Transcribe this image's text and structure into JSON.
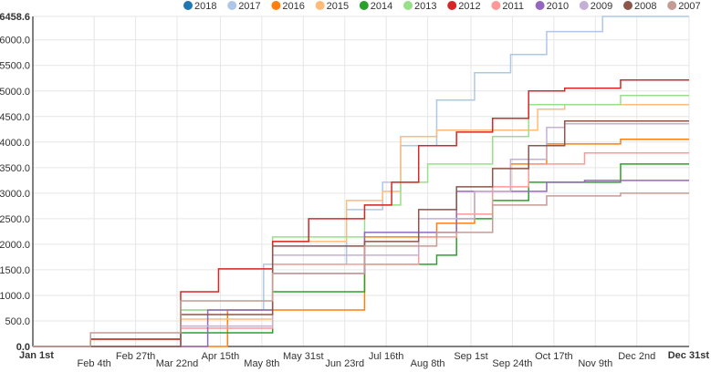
{
  "chart_data": {
    "type": "line",
    "interpolation": "step-after",
    "title": "",
    "xlabel": "",
    "ylabel": "",
    "xlim": [
      "01-01",
      "12-31"
    ],
    "ylim": [
      0,
      6458.6
    ],
    "y_ticks": [
      "0.0",
      "500.0",
      "1000.0",
      "1500.0",
      "2000.0",
      "2500.0",
      "3000.0",
      "3500.0",
      "4000.0",
      "4500.0",
      "5000.0",
      "5500.0",
      "6000.0",
      "6458.6"
    ],
    "x_ticks": [
      {
        "date": "01-01",
        "label": "Jan 1st",
        "bold": true
      },
      {
        "date": "02-04",
        "label": "Feb 4th"
      },
      {
        "date": "02-27",
        "label": "Feb 27th"
      },
      {
        "date": "03-22",
        "label": "Mar 22nd"
      },
      {
        "date": "04-15",
        "label": "Apr 15th"
      },
      {
        "date": "05-08",
        "label": "May 8th"
      },
      {
        "date": "05-31",
        "label": "May 31st"
      },
      {
        "date": "06-23",
        "label": "Jun 23rd"
      },
      {
        "date": "07-16",
        "label": "Jul 16th"
      },
      {
        "date": "08-08",
        "label": "Aug 8th"
      },
      {
        "date": "09-01",
        "label": "Sep 1st"
      },
      {
        "date": "09-24",
        "label": "Sep 24th"
      },
      {
        "date": "10-17",
        "label": "Oct 17th"
      },
      {
        "date": "11-09",
        "label": "Nov 9th"
      },
      {
        "date": "12-02",
        "label": "Dec 2nd"
      },
      {
        "date": "12-31",
        "label": "Dec 31st",
        "bold": true
      }
    ],
    "grid": true,
    "legend_position": "top-right",
    "series": [
      {
        "name": "2018",
        "color": "#1f77b4",
        "points": []
      },
      {
        "name": "2017",
        "color": "#aec7e8",
        "points": [
          [
            "01-01",
            0
          ],
          [
            "03-24",
            714
          ],
          [
            "05-09",
            1607
          ],
          [
            "06-24",
            2679
          ],
          [
            "07-14",
            3214
          ],
          [
            "07-24",
            3929
          ],
          [
            "08-13",
            4821
          ],
          [
            "09-03",
            5357
          ],
          [
            "09-23",
            5714
          ],
          [
            "10-13",
            6161
          ],
          [
            "11-13",
            6458.6
          ],
          [
            "12-31",
            6458.6
          ]
        ]
      },
      {
        "name": "2016",
        "color": "#ff7f0e",
        "points": [
          [
            "01-01",
            0
          ],
          [
            "04-19",
            714
          ],
          [
            "07-04",
            2143
          ],
          [
            "08-13",
            2411
          ],
          [
            "09-03",
            3036
          ],
          [
            "09-23",
            3571
          ],
          [
            "10-13",
            3964
          ],
          [
            "11-23",
            4054
          ],
          [
            "12-31",
            4054
          ]
        ]
      },
      {
        "name": "2015",
        "color": "#ffbb78",
        "points": [
          [
            "01-01",
            0
          ],
          [
            "03-24",
            536
          ],
          [
            "05-14",
            2054
          ],
          [
            "06-24",
            2857
          ],
          [
            "07-14",
            3036
          ],
          [
            "07-24",
            4107
          ],
          [
            "08-13",
            4232
          ],
          [
            "10-08",
            4643
          ],
          [
            "10-23",
            4732
          ],
          [
            "12-31",
            4732
          ]
        ]
      },
      {
        "name": "2014",
        "color": "#2ca02c",
        "points": [
          [
            "01-01",
            0
          ],
          [
            "02-02",
            143
          ],
          [
            "03-24",
            268
          ],
          [
            "05-14",
            1071
          ],
          [
            "07-04",
            1607
          ],
          [
            "08-13",
            1786
          ],
          [
            "08-24",
            2500
          ],
          [
            "09-13",
            2857
          ],
          [
            "10-03",
            3214
          ],
          [
            "11-23",
            3571
          ],
          [
            "12-31",
            3571
          ]
        ]
      },
      {
        "name": "2013",
        "color": "#98df8a",
        "points": [
          [
            "01-01",
            0
          ],
          [
            "03-24",
            714
          ],
          [
            "05-14",
            2143
          ],
          [
            "07-04",
            2768
          ],
          [
            "07-24",
            3214
          ],
          [
            "08-08",
            3571
          ],
          [
            "09-13",
            4107
          ],
          [
            "10-03",
            4732
          ],
          [
            "11-23",
            4911
          ],
          [
            "12-31",
            4911
          ]
        ]
      },
      {
        "name": "2012",
        "color": "#d62728",
        "points": [
          [
            "01-01",
            0
          ],
          [
            "02-02",
            143
          ],
          [
            "03-24",
            1071
          ],
          [
            "04-14",
            1518
          ],
          [
            "05-14",
            2054
          ],
          [
            "06-03",
            2500
          ],
          [
            "07-04",
            2768
          ],
          [
            "07-19",
            3214
          ],
          [
            "08-03",
            3929
          ],
          [
            "08-24",
            4196
          ],
          [
            "09-13",
            4464
          ],
          [
            "10-03",
            5000
          ],
          [
            "10-23",
            5054
          ],
          [
            "11-23",
            5214
          ],
          [
            "12-31",
            5214
          ]
        ]
      },
      {
        "name": "2011",
        "color": "#ff9896",
        "points": [
          [
            "01-01",
            0
          ],
          [
            "03-24",
            357
          ],
          [
            "05-14",
            1607
          ],
          [
            "08-03",
            2143
          ],
          [
            "08-24",
            2589
          ],
          [
            "09-13",
            3125
          ],
          [
            "10-03",
            3571
          ],
          [
            "11-03",
            3786
          ],
          [
            "12-31",
            3786
          ]
        ]
      },
      {
        "name": "2010",
        "color": "#9467bd",
        "points": [
          [
            "01-01",
            0
          ],
          [
            "03-24",
            0
          ],
          [
            "04-08",
            714
          ],
          [
            "05-14",
            1429
          ],
          [
            "07-04",
            2232
          ],
          [
            "08-24",
            3036
          ],
          [
            "10-13",
            3214
          ],
          [
            "11-03",
            3250
          ],
          [
            "12-31",
            3250
          ]
        ]
      },
      {
        "name": "2009",
        "color": "#c5b0d5",
        "points": [
          [
            "01-01",
            0
          ],
          [
            "03-24",
            400
          ],
          [
            "05-14",
            1786
          ],
          [
            "08-03",
            2500
          ],
          [
            "09-03",
            3036
          ],
          [
            "09-23",
            3661
          ],
          [
            "10-13",
            4286
          ],
          [
            "10-23",
            4357
          ],
          [
            "12-31",
            4357
          ]
        ]
      },
      {
        "name": "2008",
        "color": "#8c564b",
        "points": [
          [
            "01-01",
            0
          ],
          [
            "03-24",
            625
          ],
          [
            "05-14",
            1964
          ],
          [
            "07-04",
            2054
          ],
          [
            "08-03",
            2679
          ],
          [
            "08-24",
            3125
          ],
          [
            "09-13",
            3482
          ],
          [
            "10-03",
            3929
          ],
          [
            "10-23",
            4411
          ],
          [
            "12-31",
            4411
          ]
        ]
      },
      {
        "name": "2007",
        "color": "#c49c94",
        "points": [
          [
            "01-01",
            0
          ],
          [
            "02-02",
            268
          ],
          [
            "03-24",
            893
          ],
          [
            "05-14",
            1429
          ],
          [
            "07-04",
            1964
          ],
          [
            "08-13",
            2232
          ],
          [
            "09-13",
            2768
          ],
          [
            "10-13",
            2946
          ],
          [
            "11-23",
            3000
          ],
          [
            "12-31",
            3000
          ]
        ]
      }
    ]
  }
}
